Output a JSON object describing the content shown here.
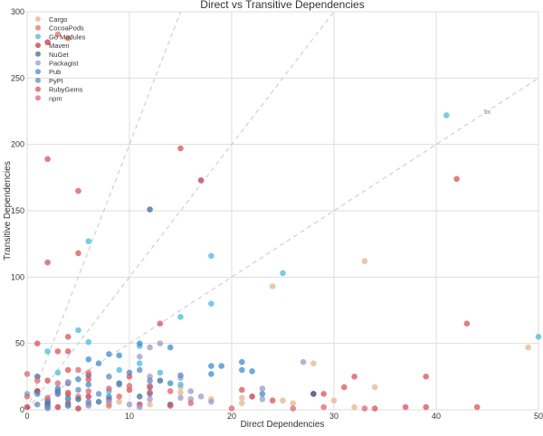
{
  "chart_data": {
    "type": "scatter",
    "title": "Direct vs Transitive Dependencies",
    "xlabel": "Direct Dependencies",
    "ylabel": "Transitive Dependencies",
    "xlim": [
      0,
      50
    ],
    "ylim": [
      0,
      300
    ],
    "xticks": [
      0,
      10,
      20,
      30,
      40,
      50
    ],
    "yticks": [
      0,
      50,
      100,
      150,
      200,
      250,
      300
    ],
    "grid": true,
    "legend_position": "top-left",
    "reference_lines": [
      {
        "slope": 20,
        "label": ""
      },
      {
        "slope": 10,
        "label": ""
      },
      {
        "slope": 5,
        "label": "5x"
      }
    ],
    "series": [
      {
        "name": "Cargo",
        "color": "#e5b68c",
        "points": [
          [
            33,
            112
          ],
          [
            24,
            93
          ],
          [
            49,
            47
          ],
          [
            28,
            35
          ],
          [
            34,
            17
          ],
          [
            30,
            7
          ],
          [
            32,
            2
          ],
          [
            21,
            9
          ],
          [
            26,
            5
          ],
          [
            18,
            8
          ],
          [
            15,
            17
          ],
          [
            15,
            13
          ],
          [
            21,
            5
          ],
          [
            25,
            7
          ],
          [
            9,
            6
          ],
          [
            8,
            5
          ],
          [
            4,
            3
          ],
          [
            12,
            4
          ]
        ]
      },
      {
        "name": "CocoaPods",
        "color": "#e4705f",
        "points": [
          [
            3,
            283
          ],
          [
            4,
            280
          ],
          [
            1,
            14
          ],
          [
            3,
            12
          ],
          [
            5,
            10
          ],
          [
            2,
            6
          ],
          [
            6,
            4
          ],
          [
            8,
            3
          ]
        ]
      },
      {
        "name": "Go Modules",
        "color": "#4bb9dc",
        "points": [
          [
            41,
            222
          ],
          [
            6,
            127
          ],
          [
            18,
            116
          ],
          [
            25,
            103
          ],
          [
            15,
            70
          ],
          [
            18,
            80
          ],
          [
            5,
            60
          ],
          [
            2,
            44
          ],
          [
            6,
            51
          ],
          [
            11,
            48
          ],
          [
            9,
            30
          ],
          [
            13,
            28
          ],
          [
            11,
            35
          ],
          [
            15,
            19
          ],
          [
            0,
            12
          ],
          [
            3,
            28
          ],
          [
            50,
            55
          ],
          [
            8,
            14
          ],
          [
            4,
            9
          ]
        ]
      },
      {
        "name": "Maven",
        "color": "#c3384c",
        "points": [
          [
            2,
            277
          ],
          [
            17,
            173
          ],
          [
            1,
            14
          ],
          [
            4,
            12
          ],
          [
            6,
            10
          ],
          [
            2,
            3
          ],
          [
            3,
            2
          ],
          [
            5,
            1
          ],
          [
            8,
            8
          ],
          [
            11,
            4
          ],
          [
            22,
            10
          ],
          [
            28,
            12
          ],
          [
            0,
            2
          ],
          [
            4,
            5
          ]
        ]
      },
      {
        "name": "NuGet",
        "color": "#3f6d9c",
        "points": [
          [
            12,
            151
          ],
          [
            1,
            25
          ],
          [
            4,
            20
          ],
          [
            6,
            26
          ],
          [
            9,
            20
          ],
          [
            12,
            17
          ],
          [
            13,
            22
          ],
          [
            11,
            10
          ],
          [
            3,
            14
          ],
          [
            5,
            8
          ],
          [
            7,
            6
          ],
          [
            2,
            5
          ],
          [
            14,
            4
          ],
          [
            28,
            12
          ]
        ]
      },
      {
        "name": "Packagist",
        "color": "#9d99c9",
        "points": [
          [
            4,
            21
          ],
          [
            11,
            40
          ],
          [
            12,
            47
          ],
          [
            13,
            50
          ],
          [
            12,
            25
          ],
          [
            15,
            24
          ],
          [
            17,
            10
          ],
          [
            16,
            14
          ],
          [
            18,
            6
          ],
          [
            16,
            8
          ],
          [
            15,
            9
          ],
          [
            27,
            36
          ],
          [
            23,
            16
          ],
          [
            23,
            8
          ],
          [
            12,
            8
          ],
          [
            6,
            3
          ],
          [
            10,
            4
          ],
          [
            8,
            6
          ],
          [
            11,
            2
          ],
          [
            2,
            1
          ]
        ]
      },
      {
        "name": "Pub",
        "color": "#3f8dcc",
        "points": [
          [
            14,
            47
          ],
          [
            6,
            38
          ],
          [
            8,
            42
          ],
          [
            9,
            41
          ],
          [
            11,
            50
          ],
          [
            7,
            35
          ],
          [
            18,
            27
          ],
          [
            18,
            33
          ],
          [
            19,
            33
          ],
          [
            21,
            36
          ],
          [
            22,
            29
          ],
          [
            14,
            20
          ],
          [
            23,
            12
          ],
          [
            21,
            30
          ],
          [
            10,
            28
          ],
          [
            5,
            23
          ],
          [
            6,
            19
          ],
          [
            3,
            16
          ],
          [
            1,
            12
          ],
          [
            2,
            7
          ],
          [
            4,
            3
          ],
          [
            8,
            10
          ],
          [
            12,
            12
          ]
        ]
      },
      {
        "name": "PyPI",
        "color": "#5e8cc2",
        "points": [
          [
            8,
            25
          ],
          [
            3,
            12
          ],
          [
            5,
            15
          ],
          [
            9,
            19
          ],
          [
            11,
            30
          ],
          [
            1,
            4
          ],
          [
            2,
            2
          ],
          [
            6,
            6
          ],
          [
            12,
            22
          ],
          [
            15,
            26
          ],
          [
            7,
            12
          ],
          [
            4,
            8
          ]
        ]
      },
      {
        "name": "RubyGems",
        "color": "#d9525d",
        "points": [
          [
            2,
            189
          ],
          [
            5,
            165
          ],
          [
            15,
            197
          ],
          [
            42,
            174
          ],
          [
            2,
            111
          ],
          [
            5,
            118
          ],
          [
            43,
            65
          ],
          [
            13,
            65
          ],
          [
            4,
            55
          ],
          [
            1,
            50
          ],
          [
            39,
            25
          ],
          [
            32,
            25
          ],
          [
            3,
            44
          ],
          [
            4,
            44
          ],
          [
            2,
            22
          ],
          [
            4,
            30
          ],
          [
            6,
            23
          ],
          [
            10,
            25
          ],
          [
            10,
            15
          ],
          [
            12,
            13
          ],
          [
            14,
            3
          ],
          [
            21,
            15
          ],
          [
            24,
            7
          ],
          [
            29,
            12
          ],
          [
            31,
            17
          ],
          [
            39,
            2
          ],
          [
            44,
            2
          ],
          [
            37,
            2
          ],
          [
            34,
            1
          ]
        ]
      },
      {
        "name": "npm",
        "color": "#dc6573",
        "points": [
          [
            0,
            27
          ],
          [
            0,
            10
          ],
          [
            1,
            22
          ],
          [
            3,
            20
          ],
          [
            5,
            30
          ],
          [
            6,
            28
          ],
          [
            8,
            16
          ],
          [
            10,
            18
          ],
          [
            12,
            18
          ],
          [
            4,
            13
          ],
          [
            2,
            9
          ],
          [
            6,
            14
          ],
          [
            9,
            10
          ],
          [
            14,
            14
          ],
          [
            20,
            1
          ],
          [
            26,
            1
          ],
          [
            29,
            2
          ],
          [
            33,
            1
          ],
          [
            16,
            5
          ]
        ]
      }
    ]
  }
}
